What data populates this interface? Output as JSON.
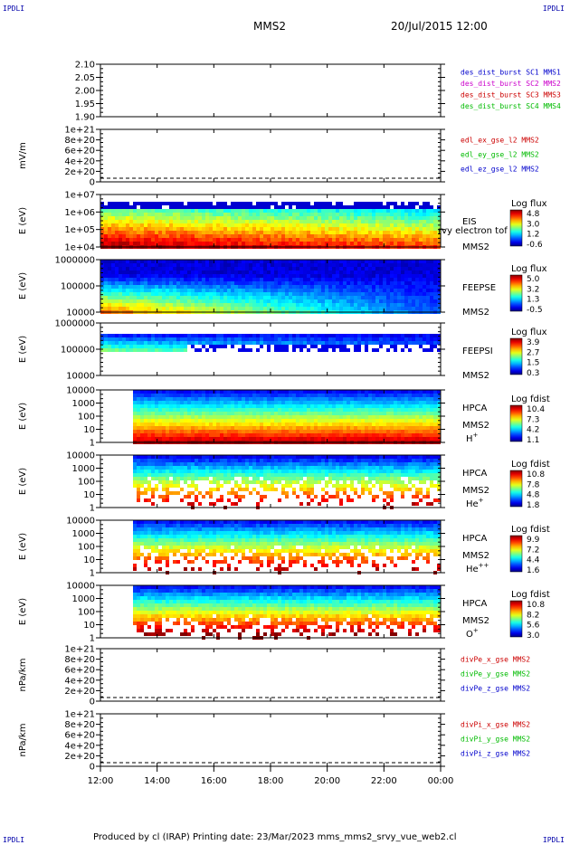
{
  "header": {
    "left_tag": "IPDLI",
    "right_tag": "IPDLI",
    "center": "MMS2",
    "date": "20/Jul/2015 12:00"
  },
  "footer": {
    "text": "Produced by cl (IRAP)   Printing date: 23/Mar/2023   mms_mms2_srvy_vue_web2.cl",
    "left_tag": "IPDLI",
    "right_tag": "IPDLI"
  },
  "colors": {
    "legend_blue": "#0000cc",
    "legend_magenta": "#cc00cc",
    "legend_red": "#cc0000",
    "legend_green": "#00bb00"
  },
  "time_axis": {
    "ticks": [
      "12:00",
      "14:00",
      "16:00",
      "18:00",
      "20:00",
      "22:00",
      "00:00"
    ]
  },
  "chart_data": [
    {
      "type": "line",
      "ylabel": "",
      "yticks": [
        "2.10",
        "2.05",
        "2.00",
        "1.95",
        "1.90"
      ],
      "legend": [
        {
          "text": "des_dist_burst SC1 MMS1",
          "color": "#0000cc"
        },
        {
          "text": "des_dist_burst SC2 MMS2",
          "color": "#cc00cc"
        },
        {
          "text": "des_dist_burst SC3 MMS3",
          "color": "#cc0000"
        },
        {
          "text": "des_dist_burst SC4 MMS4",
          "color": "#00bb00"
        }
      ]
    },
    {
      "type": "line",
      "ylabel": "mV/m",
      "yticks": [
        "1e+21",
        "8e+20",
        "6e+20",
        "4e+20",
        "2e+20",
        "0"
      ],
      "zero_line": true,
      "legend": [
        {
          "text": "edl_ex_gse_l2 MMS2",
          "color": "#cc0000"
        },
        {
          "text": "edl_ey_gse_l2 MMS2",
          "color": "#00bb00"
        },
        {
          "text": "edl_ez_gse_l2 MMS2",
          "color": "#0000cc"
        }
      ]
    },
    {
      "type": "heatmap",
      "ylabel": "E (eV)",
      "yticks": [
        "1e+07",
        "1e+06",
        "1e+05",
        "1e+04"
      ],
      "right_labels": [
        "EIS",
        "rvy electron tof",
        "MMS2"
      ],
      "colorbar": {
        "title": "Log flux",
        "ticks": [
          "4.8",
          "3.0",
          "1.2",
          "-0.6"
        ]
      }
    },
    {
      "type": "heatmap",
      "ylabel": "E (eV)",
      "yticks": [
        "1000000",
        "100000",
        "10000"
      ],
      "right_labels": [
        "FEEPSE",
        "MMS2"
      ],
      "colorbar": {
        "title": "Log flux",
        "ticks": [
          "5.0",
          "3.2",
          "1.3",
          "-0.5"
        ]
      }
    },
    {
      "type": "heatmap",
      "ylabel": "E (eV)",
      "yticks": [
        "1000000",
        "100000",
        "10000"
      ],
      "right_labels": [
        "FEEPSI",
        "MMS2"
      ],
      "colorbar": {
        "title": "Log flux",
        "ticks": [
          "3.9",
          "2.7",
          "1.5",
          "0.3"
        ]
      }
    },
    {
      "type": "heatmap",
      "ylabel": "E (eV)",
      "yticks": [
        "10000",
        "1000",
        "100",
        "10",
        "1"
      ],
      "right_labels": [
        "HPCA",
        "MMS2"
      ],
      "species": {
        "base": "H",
        "sup": "+"
      },
      "colorbar": {
        "title": "Log fdist",
        "ticks": [
          "10.4",
          "7.3",
          "4.2",
          "1.1"
        ]
      }
    },
    {
      "type": "heatmap",
      "ylabel": "E (eV)",
      "yticks": [
        "10000",
        "1000",
        "100",
        "10",
        "1"
      ],
      "right_labels": [
        "HPCA",
        "MMS2"
      ],
      "species": {
        "base": "He",
        "sup": "+"
      },
      "colorbar": {
        "title": "Log fdist",
        "ticks": [
          "10.8",
          "7.8",
          "4.8",
          "1.8"
        ]
      }
    },
    {
      "type": "heatmap",
      "ylabel": "E (eV)",
      "yticks": [
        "10000",
        "1000",
        "100",
        "10",
        "1"
      ],
      "right_labels": [
        "HPCA",
        "MMS2"
      ],
      "species": {
        "base": "He",
        "sup": "++"
      },
      "colorbar": {
        "title": "Log fdist",
        "ticks": [
          "9.9",
          "7.2",
          "4.4",
          "1.6"
        ]
      }
    },
    {
      "type": "heatmap",
      "ylabel": "E (eV)",
      "yticks": [
        "10000",
        "1000",
        "100",
        "10",
        "1"
      ],
      "right_labels": [
        "HPCA",
        "MMS2"
      ],
      "species": {
        "base": "O",
        "sup": "+"
      },
      "colorbar": {
        "title": "Log fdist",
        "ticks": [
          "10.8",
          "8.2",
          "5.6",
          "3.0"
        ]
      }
    },
    {
      "type": "line",
      "ylabel": "nPa/km",
      "yticks": [
        "1e+21",
        "8e+20",
        "6e+20",
        "4e+20",
        "2e+20",
        "0"
      ],
      "zero_line": true,
      "legend": [
        {
          "text": "divPe_x_gse MMS2",
          "color": "#cc0000"
        },
        {
          "text": "divPe_y_gse MMS2",
          "color": "#00bb00"
        },
        {
          "text": "divPe_z_gse MMS2",
          "color": "#0000cc"
        }
      ]
    },
    {
      "type": "line",
      "ylabel": "nPa/km",
      "yticks": [
        "1e+21",
        "8e+20",
        "6e+20",
        "4e+20",
        "2e+20",
        "0"
      ],
      "zero_line": true,
      "legend": [
        {
          "text": "divPi_x_gse MMS2",
          "color": "#cc0000"
        },
        {
          "text": "divPi_y_gse MMS2",
          "color": "#00bb00"
        },
        {
          "text": "divPi_z_gse MMS2",
          "color": "#0000cc"
        }
      ]
    }
  ]
}
